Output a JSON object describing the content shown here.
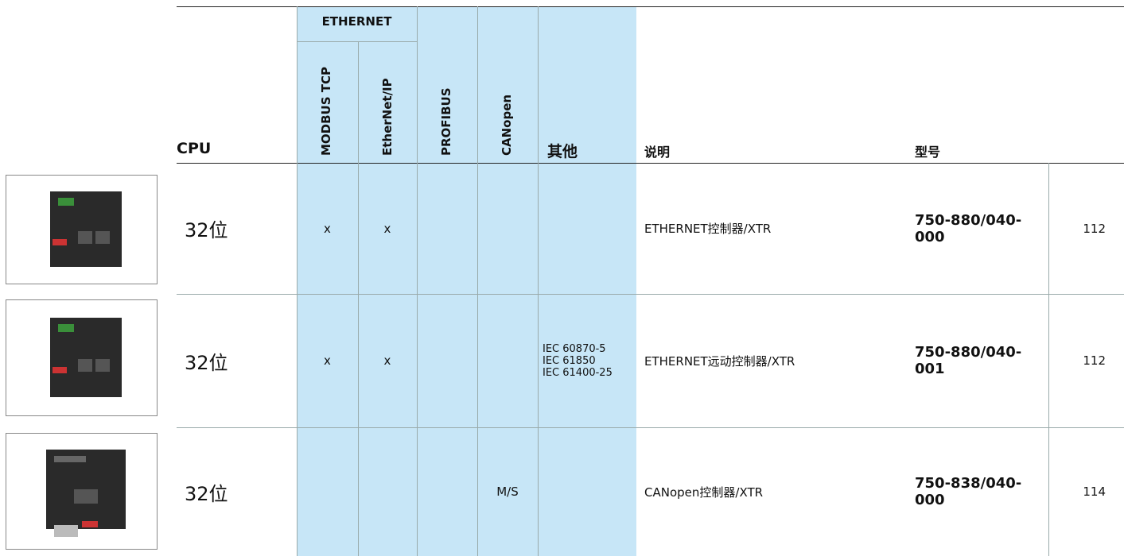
{
  "header": {
    "cpu": "CPU",
    "ethernet": "ETHERNET",
    "modbus": "MODBUS TCP",
    "ethernetip": "EtherNet/IP",
    "profibus": "PROFIBUS",
    "canopen": "CANopen",
    "other": "其他",
    "description": "说明",
    "model": "型号"
  },
  "rows": [
    {
      "cpu": "32位",
      "modbus": "x",
      "ethernetip": "x",
      "description": "ETHERNET控制器/XTR",
      "model": "750-880/040-000",
      "page": "112"
    },
    {
      "cpu": "32位",
      "modbus": "x",
      "ethernetip": "x",
      "other": [
        "IEC 60870-5",
        "IEC 61850",
        "IEC 61400-25"
      ],
      "description": "ETHERNET远动控制器/XTR",
      "model": "750-880/040-001",
      "page": "112"
    },
    {
      "cpu": "32位",
      "canopen": "M/S",
      "description": "CANopen控制器/XTR",
      "model": "750-838/040-000",
      "page": "114"
    }
  ]
}
